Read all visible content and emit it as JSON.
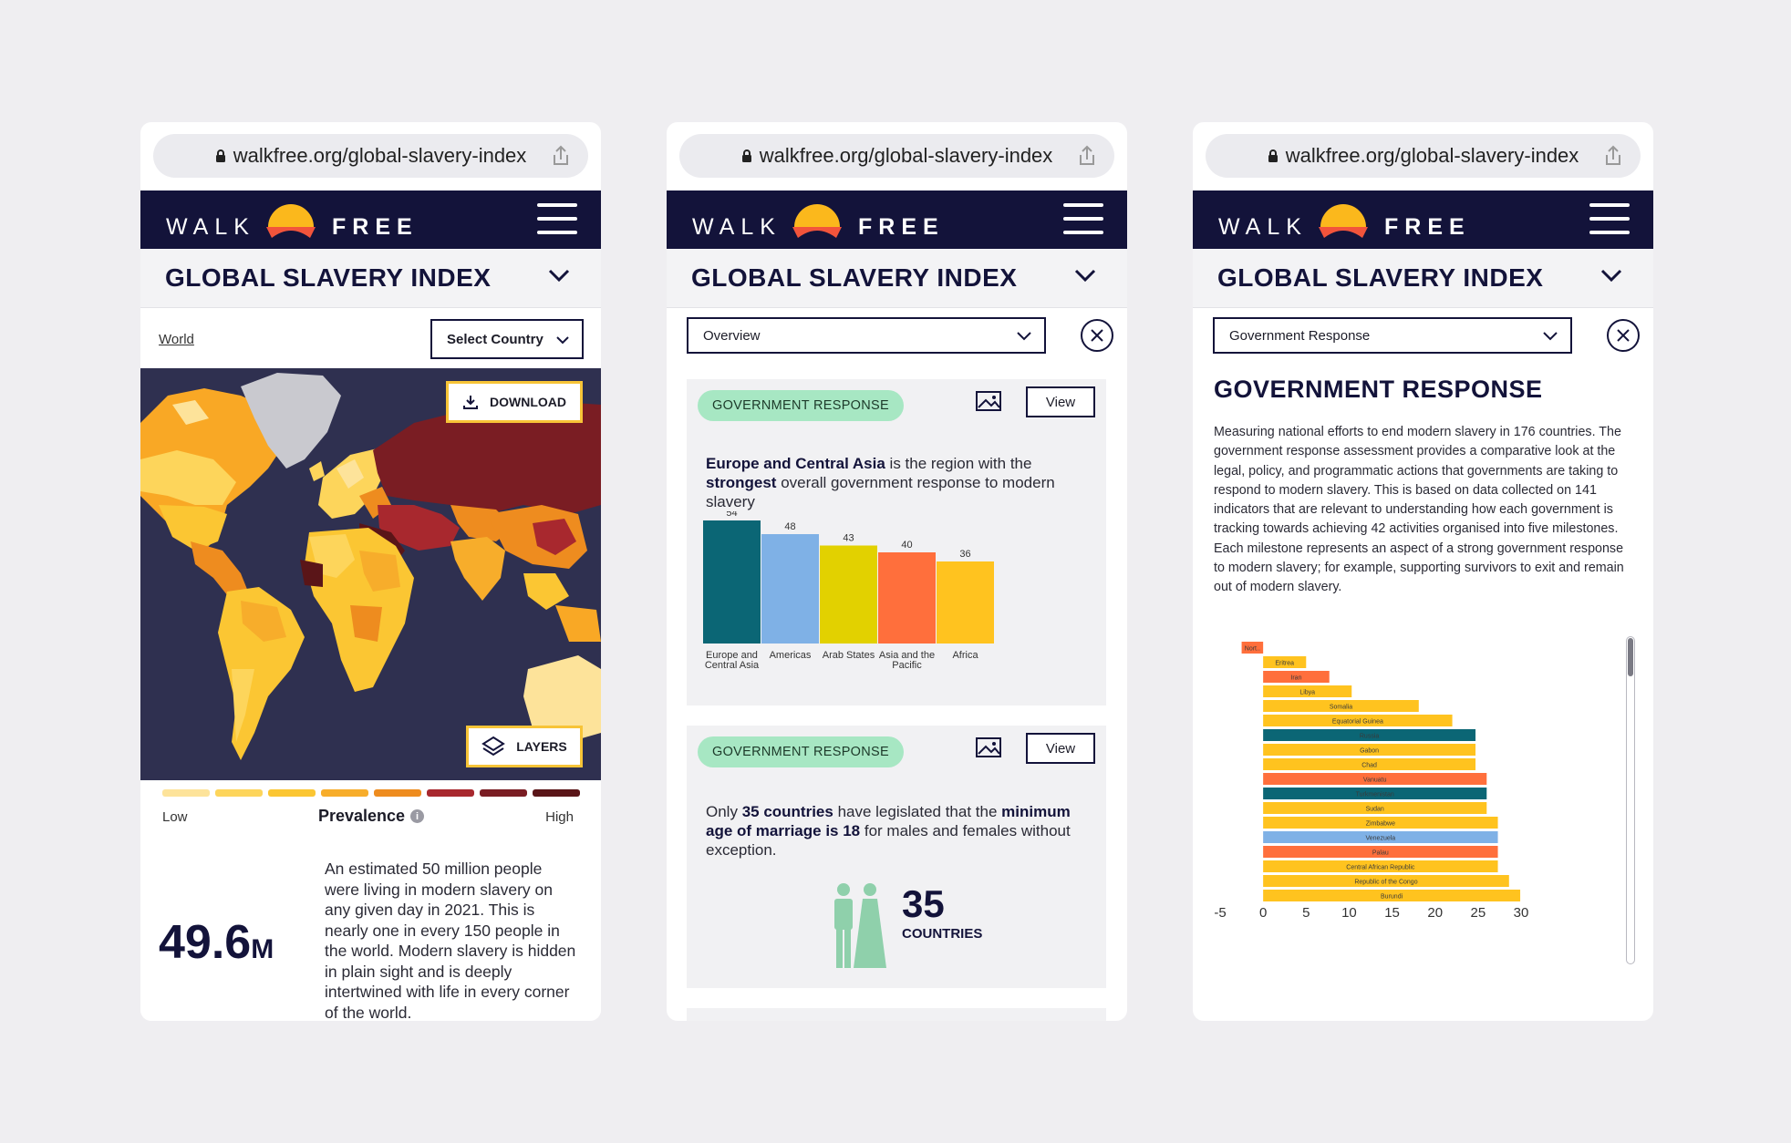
{
  "url": "walkfree.org/global-slavery-index",
  "brand": {
    "left": "WALK",
    "right": "FREE"
  },
  "site_title": "GLOBAL SLAVERY INDEX",
  "colors": {
    "navy": "#13133a",
    "accent_yellow": "#f7c437",
    "pill_green": "#a7e7c3",
    "map_bg": "#2f3050"
  },
  "screen1": {
    "breadcrumb": "World",
    "country_select": "Select Country",
    "download_label": "DOWNLOAD",
    "layers_label": "LAYERS",
    "legend": {
      "low": "Low",
      "high": "High",
      "title": "Prevalence",
      "info_glyph": "i",
      "swatches": [
        "#fde39a",
        "#fdd55b",
        "#fbc633",
        "#f7ad2b",
        "#ee8c1f",
        "#a8282e",
        "#7a1d23",
        "#5a1518"
      ]
    },
    "stat_value": "49.6",
    "stat_unit": "M",
    "stat_text": "An estimated 50 million people were living in modern slavery on any given day in 2021. This is nearly one in every 150 people in the world. Modern slavery is hidden in plain sight and is deeply intertwined with life in every corner of the world."
  },
  "screen2": {
    "select_value": "Overview",
    "card1": {
      "pill": "GOVERNMENT RESPONSE",
      "view_label": "View",
      "text_bold1": "Europe and Central Asia",
      "text_plain1": " is the region with the ",
      "text_bold2": "strongest",
      "text_plain2": " overall government response to modern slavery"
    },
    "card2": {
      "pill": "GOVERNMENT RESPONSE",
      "view_label": "View",
      "text_plain1": "Only ",
      "text_bold1": "35 countries",
      "text_plain2": " have legislated that the ",
      "text_bold2": "minimum age of marriage is 18",
      "text_plain3": " for males and females without exception.",
      "figure_number": "35",
      "figure_label": "COUNTRIES"
    }
  },
  "screen3": {
    "select_value": "Government Response",
    "title": "GOVERNMENT RESPONSE",
    "body": "Measuring national efforts to end modern slavery in 176 countries. The government response assessment provides a comparative look at the legal, policy, and programmatic actions that governments are taking to respond to modern slavery. This is based on data collected on 141 indicators that are relevant to understanding how each government is tracking towards achieving 42 activities organised into five milestones. Each milestone represents an aspect of a strong government response to modern slavery; for example, supporting survivors to exit and remain out of modern slavery."
  },
  "chart_data": [
    {
      "type": "bar",
      "categories": [
        "Europe and Central Asia",
        "Americas",
        "Arab States",
        "Asia and the Pacific",
        "Africa"
      ],
      "values": [
        54,
        48,
        43,
        40,
        36
      ],
      "colors": [
        "#0b6675",
        "#7fb1e6",
        "#e2d100",
        "#ff6f3c",
        "#ffc31f"
      ],
      "ylim": [
        0,
        60
      ]
    },
    {
      "type": "bar",
      "orientation": "horizontal",
      "categories": [
        "Nort..",
        "Eritrea",
        "Iran",
        "Libya",
        "Somalia",
        "Equatorial Guinea",
        "Russia",
        "Gabon",
        "Chad",
        "Vanuatu",
        "Turkmenistan",
        "Sudan",
        "Zimbabwe",
        "Venezuela",
        "Palau",
        "Central African Republic",
        "Republic of the Congo",
        "Burundi"
      ],
      "values": [
        -2.5,
        5,
        7.7,
        10.3,
        18.1,
        22,
        24.7,
        24.7,
        24.7,
        26,
        26,
        26,
        27.3,
        27.3,
        27.3,
        27.3,
        28.6,
        29.9
      ],
      "colors": [
        "#ff6f3c",
        "#ffc31f",
        "#ff6f3c",
        "#ffc31f",
        "#ffc31f",
        "#ffc31f",
        "#0b6675",
        "#ffc31f",
        "#ffc31f",
        "#ff6f3c",
        "#0b6675",
        "#ffc31f",
        "#ffc31f",
        "#7fb1e6",
        "#ff6f3c",
        "#ffc31f",
        "#ffc31f",
        "#ffc31f"
      ],
      "x_ticks": [
        -5,
        0,
        5,
        10,
        15,
        20,
        25,
        30
      ],
      "xlim": [
        -5,
        30
      ]
    }
  ]
}
